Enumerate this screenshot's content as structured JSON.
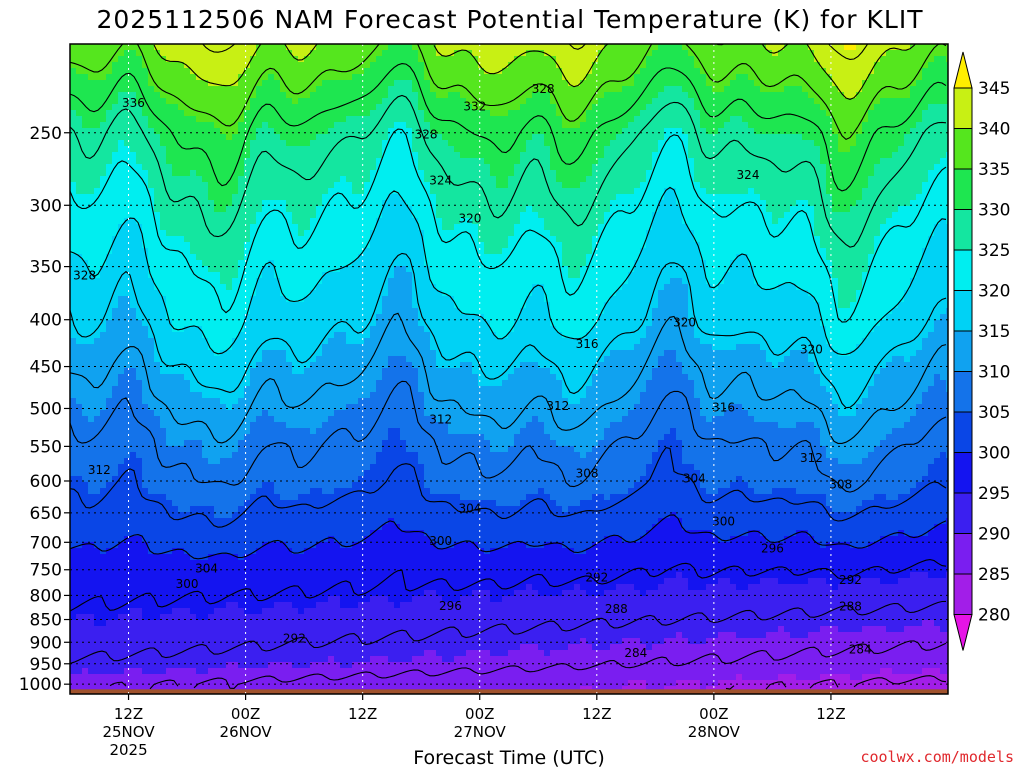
{
  "chart_data": {
    "type": "heatmap",
    "title": "2025112506 NAM Forecast Potential Temperature (K) for KLIT",
    "xlabel": "Forecast Time (UTC)",
    "ylabel": "",
    "credit": "coolwx.com/models",
    "y_axis": {
      "scale": "log-pressure",
      "inverted": true,
      "ticks": [
        250,
        300,
        350,
        400,
        450,
        500,
        550,
        600,
        650,
        700,
        750,
        800,
        850,
        900,
        950,
        1000
      ],
      "range": [
        200,
        1025
      ]
    },
    "x_axis": {
      "range_hours": [
        -6,
        84
      ],
      "ticks": [
        {
          "hour": 0,
          "label": "12Z",
          "date": "25NOV",
          "year": "2025"
        },
        {
          "hour": 12,
          "label": "00Z",
          "date": "26NOV",
          "year": ""
        },
        {
          "hour": 24,
          "label": "12Z",
          "date": "",
          "year": ""
        },
        {
          "hour": 36,
          "label": "00Z",
          "date": "27NOV",
          "year": ""
        },
        {
          "hour": 48,
          "label": "12Z",
          "date": "",
          "year": ""
        },
        {
          "hour": 60,
          "label": "00Z",
          "date": "28NOV",
          "year": ""
        },
        {
          "hour": 72,
          "label": "12Z",
          "date": "",
          "year": ""
        }
      ]
    },
    "grid": true,
    "colorbar": {
      "levels": [
        280,
        285,
        290,
        295,
        300,
        305,
        310,
        315,
        320,
        325,
        330,
        335,
        340,
        345
      ],
      "colors": [
        "#e614e6",
        "#a21ee8",
        "#7a1ef0",
        "#3b1ff0",
        "#1414f0",
        "#0a46e6",
        "#1473ea",
        "#10a2f0",
        "#00d2f5",
        "#00eef0",
        "#14e6a0",
        "#1ee650",
        "#55e61e",
        "#c8f014",
        "#ffee00"
      ]
    },
    "surface_color": "#a0522d",
    "theta_profile": [
      {
        "p": 1000,
        "theta": 286
      },
      {
        "p": 950,
        "theta": 289
      },
      {
        "p": 900,
        "theta": 291
      },
      {
        "p": 850,
        "theta": 293
      },
      {
        "p": 800,
        "theta": 295
      },
      {
        "p": 750,
        "theta": 297
      },
      {
        "p": 700,
        "theta": 300
      },
      {
        "p": 650,
        "theta": 303
      },
      {
        "p": 600,
        "theta": 306
      },
      {
        "p": 550,
        "theta": 308
      },
      {
        "p": 500,
        "theta": 311
      },
      {
        "p": 450,
        "theta": 314
      },
      {
        "p": 400,
        "theta": 318
      },
      {
        "p": 350,
        "theta": 321
      },
      {
        "p": 300,
        "theta": 325
      },
      {
        "p": 250,
        "theta": 330
      },
      {
        "p": 200,
        "theta": 340
      }
    ],
    "contour_labels": [
      {
        "text": "336",
        "hour": 0.5,
        "p": 232
      },
      {
        "text": "332",
        "hour": 35.5,
        "p": 234
      },
      {
        "text": "328",
        "hour": 42.5,
        "p": 224
      },
      {
        "text": "328",
        "hour": 30.5,
        "p": 251
      },
      {
        "text": "324",
        "hour": 32,
        "p": 282
      },
      {
        "text": "324",
        "hour": 63.5,
        "p": 278
      },
      {
        "text": "320",
        "hour": 35,
        "p": 310
      },
      {
        "text": "328",
        "hour": -4.5,
        "p": 358
      },
      {
        "text": "320",
        "hour": 57,
        "p": 403
      },
      {
        "text": "320",
        "hour": 70,
        "p": 431
      },
      {
        "text": "316",
        "hour": 47,
        "p": 425
      },
      {
        "text": "316",
        "hour": 61,
        "p": 499
      },
      {
        "text": "312",
        "hour": 44,
        "p": 497
      },
      {
        "text": "312",
        "hour": 32,
        "p": 514
      },
      {
        "text": "312",
        "hour": -3,
        "p": 584
      },
      {
        "text": "312",
        "hour": 70,
        "p": 566
      },
      {
        "text": "308",
        "hour": 47,
        "p": 589
      },
      {
        "text": "308",
        "hour": 73,
        "p": 605
      },
      {
        "text": "304",
        "hour": 58,
        "p": 596
      },
      {
        "text": "304",
        "hour": 35,
        "p": 643
      },
      {
        "text": "304",
        "hour": 8,
        "p": 748
      },
      {
        "text": "300",
        "hour": 61,
        "p": 664
      },
      {
        "text": "300",
        "hour": 32,
        "p": 698
      },
      {
        "text": "300",
        "hour": 6,
        "p": 777
      },
      {
        "text": "296",
        "hour": 66,
        "p": 711
      },
      {
        "text": "296",
        "hour": 33,
        "p": 822
      },
      {
        "text": "292",
        "hour": 48,
        "p": 765
      },
      {
        "text": "292",
        "hour": 74,
        "p": 770
      },
      {
        "text": "292",
        "hour": 17,
        "p": 891
      },
      {
        "text": "288",
        "hour": 50,
        "p": 828
      },
      {
        "text": "288",
        "hour": 74,
        "p": 823
      },
      {
        "text": "284",
        "hour": 52,
        "p": 925
      },
      {
        "text": "284",
        "hour": 75,
        "p": 916
      }
    ]
  }
}
